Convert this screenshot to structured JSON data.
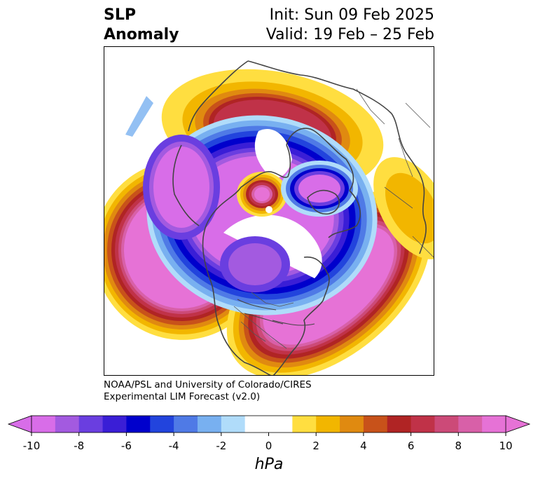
{
  "title": {
    "variable_line1": "SLP",
    "variable_line2": "Anomaly",
    "init": "Init: Sun 09 Feb 2025",
    "valid": "Valid: 19 Feb – 25 Feb"
  },
  "credit": {
    "line1": "NOAA/PSL and University of Colorado/CIRES",
    "line2": "Experimental LIM Forecast (v2.0)"
  },
  "colorbar": {
    "unit": "hPa",
    "ticks": [
      "-10",
      "-8",
      "-6",
      "-4",
      "-2",
      "0",
      "2",
      "4",
      "6",
      "8",
      "10"
    ],
    "colors": [
      "#d86de8",
      "#a35ae0",
      "#6a3ee0",
      "#3a1ed6",
      "#0000cc",
      "#2244dd",
      "#4f7ae6",
      "#78b0f0",
      "#b0dcfa",
      "#ffffff",
      "#ffffff",
      "#ffde40",
      "#f2b600",
      "#e08a10",
      "#c8521a",
      "#b02424",
      "#c03248",
      "#cc4a78",
      "#d860a8",
      "#e672d6"
    ]
  },
  "map": {
    "projection": "north polar stereographic",
    "field": "sea level pressure anomaly",
    "features": [
      {
        "name": "north-pacific-low",
        "min_hpa": -10
      },
      {
        "name": "north-atlantic-low",
        "min_hpa": -10
      },
      {
        "name": "canada-high",
        "max_hpa": 6
      },
      {
        "name": "central-arctic-low",
        "max_hpa": 10
      },
      {
        "name": "barents-kara-high",
        "min_hpa": -10
      },
      {
        "name": "east-siberia-high",
        "min_hpa": -10
      },
      {
        "name": "western-europe-low",
        "max_hpa": 4
      }
    ]
  }
}
